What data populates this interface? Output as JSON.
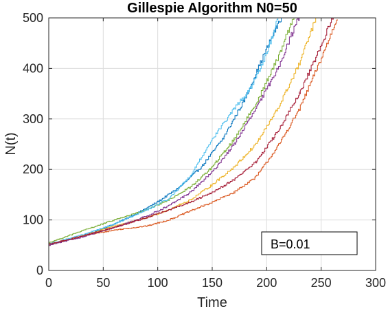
{
  "chart_data": {
    "type": "line",
    "title": "Gillespie Algorithm N0=50",
    "xlabel": "Time",
    "ylabel": "N(t)",
    "xlim": [
      0,
      300
    ],
    "ylim": [
      0,
      500
    ],
    "xticks": [
      0,
      50,
      100,
      150,
      200,
      250,
      300
    ],
    "yticks": [
      0,
      100,
      200,
      300,
      400,
      500
    ],
    "grid": true,
    "annotation": "B=0.01",
    "series": [
      {
        "color": "#0072bd",
        "x": [
          0,
          20,
          40,
          60,
          80,
          100,
          120,
          140,
          160,
          180,
          200,
          215
        ],
        "y": [
          52,
          62,
          75,
          92,
          112,
          136,
          165,
          205,
          262,
          340,
          440,
          510
        ]
      },
      {
        "color": "#d95319",
        "x": [
          0,
          30,
          60,
          90,
          110,
          130,
          150,
          170,
          190,
          210,
          230,
          250,
          265
        ],
        "y": [
          50,
          68,
          80,
          88,
          100,
          118,
          135,
          155,
          185,
          245,
          320,
          420,
          502
        ]
      },
      {
        "color": "#edb120",
        "x": [
          0,
          30,
          60,
          90,
          110,
          130,
          150,
          170,
          190,
          210,
          230,
          245
        ],
        "y": [
          52,
          68,
          88,
          105,
          120,
          140,
          170,
          205,
          250,
          320,
          410,
          500
        ]
      },
      {
        "color": "#7e2f8e",
        "x": [
          0,
          30,
          60,
          90,
          110,
          130,
          150,
          170,
          190,
          210,
          230
        ],
        "y": [
          50,
          66,
          85,
          108,
          128,
          155,
          195,
          250,
          320,
          400,
          505
        ]
      },
      {
        "color": "#77ac30",
        "x": [
          0,
          30,
          60,
          90,
          110,
          130,
          150,
          170,
          190,
          210,
          225
        ],
        "y": [
          55,
          78,
          100,
          120,
          140,
          165,
          205,
          260,
          330,
          420,
          505
        ]
      },
      {
        "color": "#4dbeee",
        "x": [
          0,
          30,
          60,
          90,
          110,
          130,
          150,
          170,
          185,
          200,
          212
        ],
        "y": [
          53,
          70,
          92,
          120,
          142,
          188,
          260,
          320,
          360,
          430,
          510
        ]
      },
      {
        "color": "#a2142f",
        "x": [
          0,
          30,
          60,
          90,
          110,
          130,
          150,
          170,
          190,
          210,
          230,
          250,
          262
        ],
        "y": [
          52,
          68,
          85,
          105,
          120,
          135,
          155,
          180,
          215,
          275,
          350,
          445,
          510
        ]
      }
    ]
  }
}
